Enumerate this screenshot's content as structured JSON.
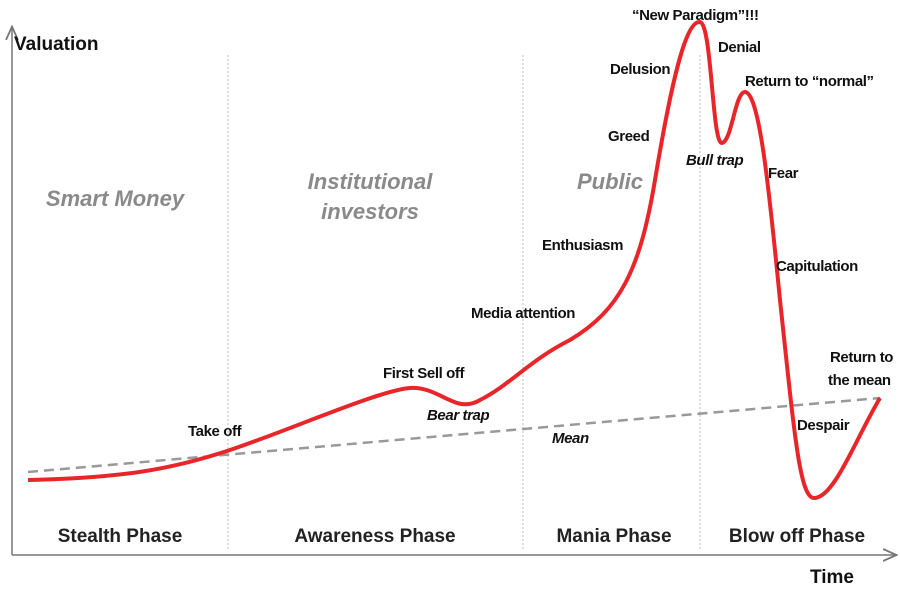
{
  "axes": {
    "y_label": "Valuation",
    "x_label": "Time"
  },
  "phases": [
    "Stealth Phase",
    "Awareness Phase",
    "Mania Phase",
    "Blow off Phase"
  ],
  "participants": {
    "smart_money": [
      "Smart Money"
    ],
    "institutional": [
      "Institutional",
      "investors"
    ],
    "public": [
      "Public"
    ]
  },
  "annotations": {
    "take_off": [
      "Take off"
    ],
    "first_sell_off": [
      "First Sell off"
    ],
    "bear_trap": [
      "Bear trap"
    ],
    "media_attention": [
      "Media attention"
    ],
    "enthusiasm": [
      "Enthusiasm"
    ],
    "greed": [
      "Greed"
    ],
    "delusion": [
      "Delusion"
    ],
    "new_paradigm": [
      "“New Paradigm”!!!"
    ],
    "denial": [
      "Denial"
    ],
    "return_to_normal": [
      "Return to “normal”"
    ],
    "bull_trap": [
      "Bull trap"
    ],
    "fear": [
      "Fear"
    ],
    "capitulation": [
      "Capitulation"
    ],
    "return_to_mean": [
      "Return to",
      "the mean"
    ],
    "despair": [
      "Despair"
    ],
    "mean": [
      "Mean"
    ]
  }
}
